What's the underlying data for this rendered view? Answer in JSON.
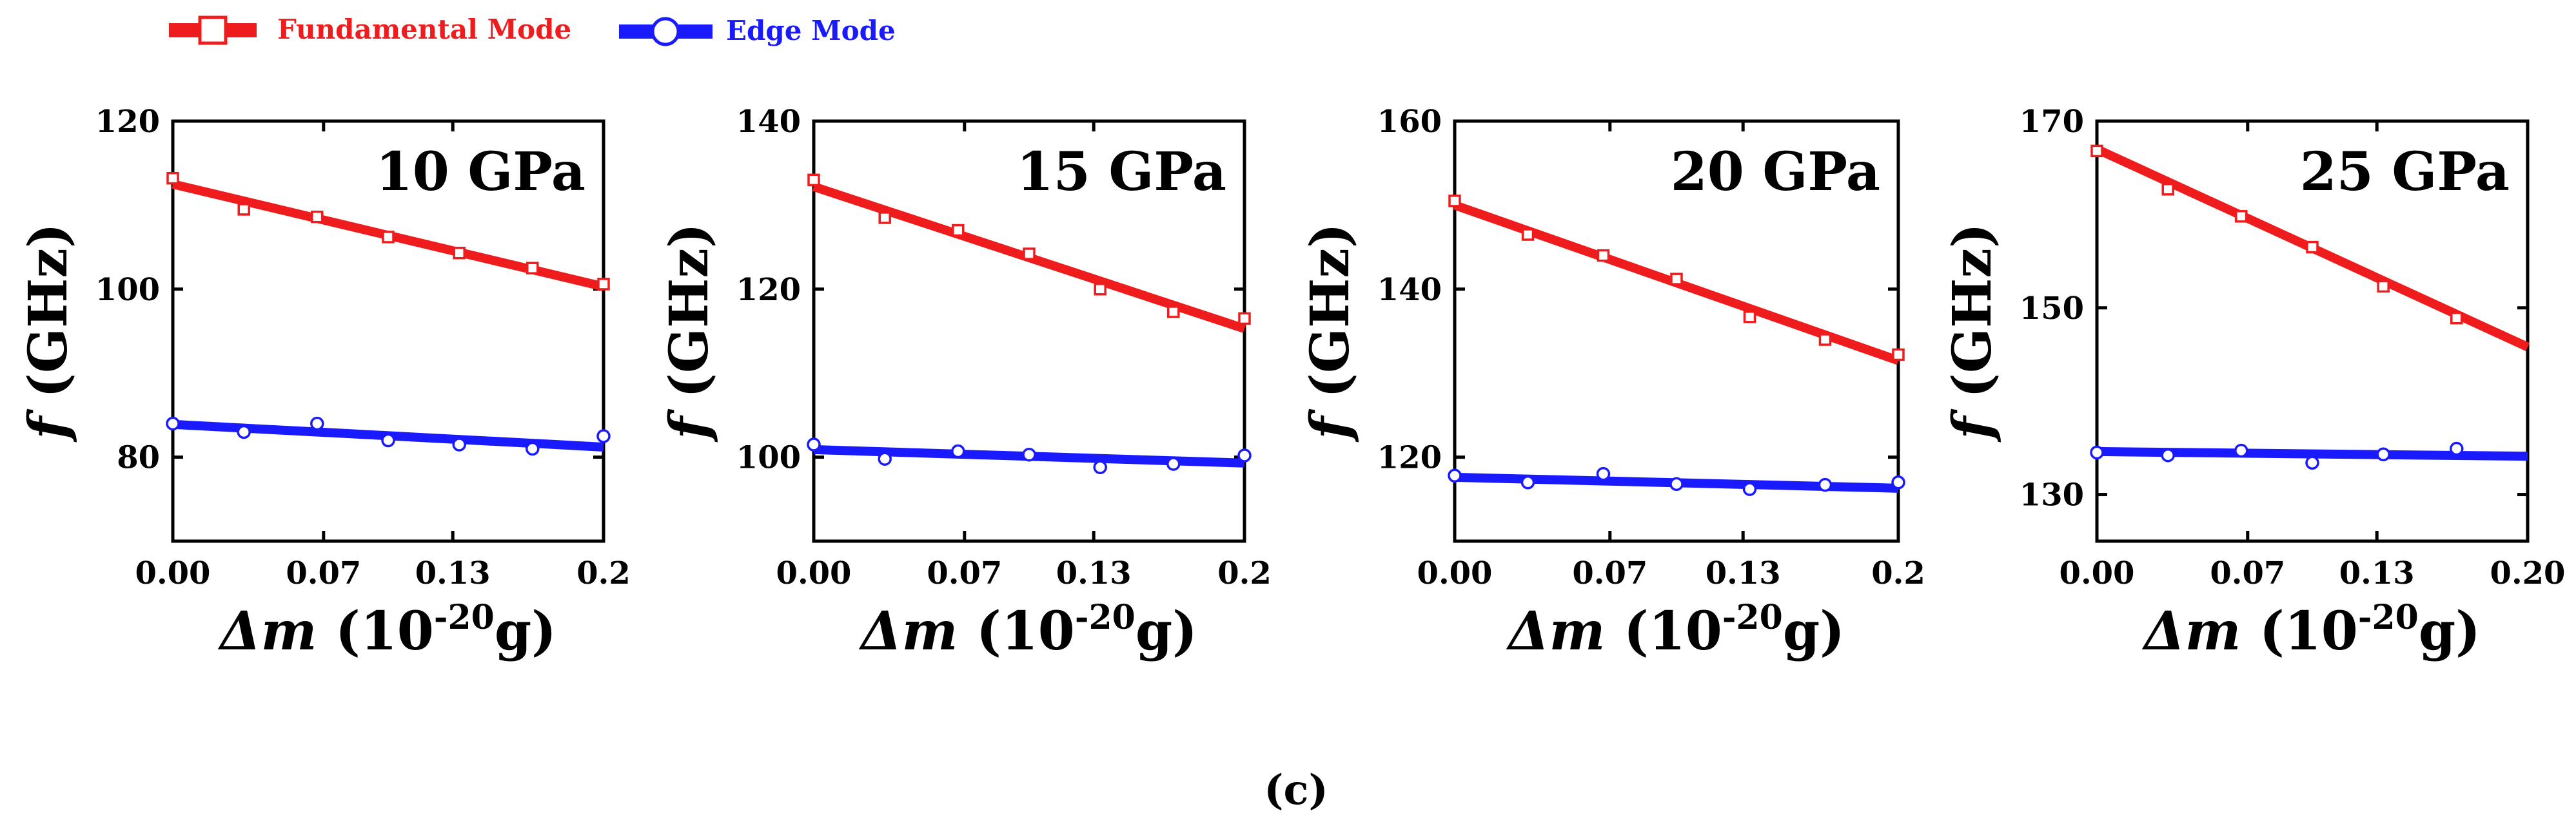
{
  "legend": [
    {
      "label": "Fundamental Mode",
      "color": "#ee1c1c",
      "marker": "square"
    },
    {
      "label": "Edge Mode",
      "color": "#1a1aff",
      "marker": "circle"
    }
  ],
  "caption": "(c)",
  "chart_data": [
    {
      "type": "scatter",
      "title": "10 GPa",
      "ylabel_symbol": "f",
      "ylabel_unit": "(GHz)",
      "xlabel_symbol": "Δm",
      "xlabel_open": "(10",
      "xlabel_exp": "-20",
      "xlabel_close": "g)",
      "xlim": [
        0,
        0.2
      ],
      "ylim": [
        70,
        120
      ],
      "xticks": [
        0,
        0.07,
        0.13,
        0.2
      ],
      "xtick_labels": [
        "0.00",
        "0.07",
        "0.13",
        "0.2"
      ],
      "yticks": [
        80,
        100,
        120
      ],
      "ytick_labels": [
        "80",
        "100",
        "120"
      ],
      "series": [
        {
          "name": "Fundamental Mode",
          "x": [
            0,
            0.033,
            0.067,
            0.1,
            0.133,
            0.167,
            0.2
          ],
          "values": [
            113.2,
            109.5,
            108.6,
            106.2,
            104.3,
            102.5,
            100.6
          ],
          "fit": [
            112.5,
            100.3
          ]
        },
        {
          "name": "Edge Mode",
          "x": [
            0,
            0.033,
            0.067,
            0.1,
            0.133,
            0.167,
            0.2
          ],
          "values": [
            84.0,
            83.0,
            84.0,
            82.0,
            81.5,
            81.0,
            82.5
          ],
          "fit": [
            83.9,
            81.2
          ]
        }
      ]
    },
    {
      "type": "scatter",
      "title": "15 GPa",
      "ylabel_symbol": "f",
      "ylabel_unit": "(GHz)",
      "xlabel_symbol": "Δm",
      "xlabel_open": "(10",
      "xlabel_exp": "-20",
      "xlabel_close": "g)",
      "xlim": [
        0,
        0.2
      ],
      "ylim": [
        90,
        140
      ],
      "xticks": [
        0,
        0.07,
        0.13,
        0.2
      ],
      "xtick_labels": [
        "0.00",
        "0.07",
        "0.13",
        "0.2"
      ],
      "yticks": [
        100,
        120,
        140
      ],
      "ytick_labels": [
        "100",
        "120",
        "140"
      ],
      "series": [
        {
          "name": "Fundamental Mode",
          "x": [
            0,
            0.033,
            0.067,
            0.1,
            0.133,
            0.167,
            0.2
          ],
          "values": [
            133.0,
            128.5,
            127.0,
            124.2,
            120.0,
            117.3,
            116.5
          ],
          "fit": [
            132.2,
            115.3
          ]
        },
        {
          "name": "Edge Mode",
          "x": [
            0,
            0.033,
            0.067,
            0.1,
            0.133,
            0.167,
            0.2
          ],
          "values": [
            101.5,
            99.8,
            100.7,
            100.3,
            98.8,
            99.2,
            100.2
          ],
          "fit": [
            100.9,
            99.3
          ]
        }
      ]
    },
    {
      "type": "scatter",
      "title": "20 GPa",
      "ylabel_symbol": "f",
      "ylabel_unit": "(GHz)",
      "xlabel_symbol": "Δm",
      "xlabel_open": "(10",
      "xlabel_exp": "-20",
      "xlabel_close": "g)",
      "xlim": [
        0,
        0.2
      ],
      "ylim": [
        110,
        160
      ],
      "xticks": [
        0,
        0.07,
        0.13,
        0.2
      ],
      "xtick_labels": [
        "0.00",
        "0.07",
        "0.13",
        "0.2"
      ],
      "yticks": [
        120,
        140,
        160
      ],
      "ytick_labels": [
        "120",
        "140",
        "160"
      ],
      "series": [
        {
          "name": "Fundamental Mode",
          "x": [
            0,
            0.033,
            0.067,
            0.1,
            0.133,
            0.167,
            0.2
          ],
          "values": [
            150.5,
            146.5,
            144.0,
            141.2,
            136.7,
            134.0,
            132.2
          ],
          "fit": [
            150.0,
            131.5
          ]
        },
        {
          "name": "Edge Mode",
          "x": [
            0,
            0.033,
            0.067,
            0.1,
            0.133,
            0.167,
            0.2
          ],
          "values": [
            117.8,
            117.0,
            118.0,
            116.8,
            116.2,
            116.7,
            117.0
          ],
          "fit": [
            117.6,
            116.3
          ]
        }
      ]
    },
    {
      "type": "scatter",
      "title": "25 GPa",
      "ylabel_symbol": "f",
      "ylabel_unit": "(GHz)",
      "xlabel_symbol": "Δm",
      "xlabel_open": "(10",
      "xlabel_exp": "-20",
      "xlabel_close": "g)",
      "xlim": [
        0,
        0.2
      ],
      "ylim": [
        125,
        170
      ],
      "xticks": [
        0,
        0.07,
        0.13,
        0.2
      ],
      "xtick_labels": [
        "0.00",
        "0.07",
        "0.13",
        "0.20"
      ],
      "yticks": [
        130,
        150,
        170
      ],
      "ytick_labels": [
        "130",
        "150",
        "170"
      ],
      "series": [
        {
          "name": "Fundamental Mode",
          "x": [
            0,
            0.033,
            0.067,
            0.1,
            0.133,
            0.167
          ],
          "values": [
            166.8,
            162.7,
            159.8,
            156.5,
            152.3,
            148.9
          ],
          "fit": [
            167.0,
            145.8
          ]
        },
        {
          "name": "Edge Mode",
          "x": [
            0,
            0.033,
            0.067,
            0.1,
            0.133,
            0.167
          ],
          "values": [
            134.5,
            134.2,
            134.7,
            133.4,
            134.3,
            134.9
          ],
          "fit": [
            134.6,
            134.1
          ]
        }
      ]
    }
  ]
}
